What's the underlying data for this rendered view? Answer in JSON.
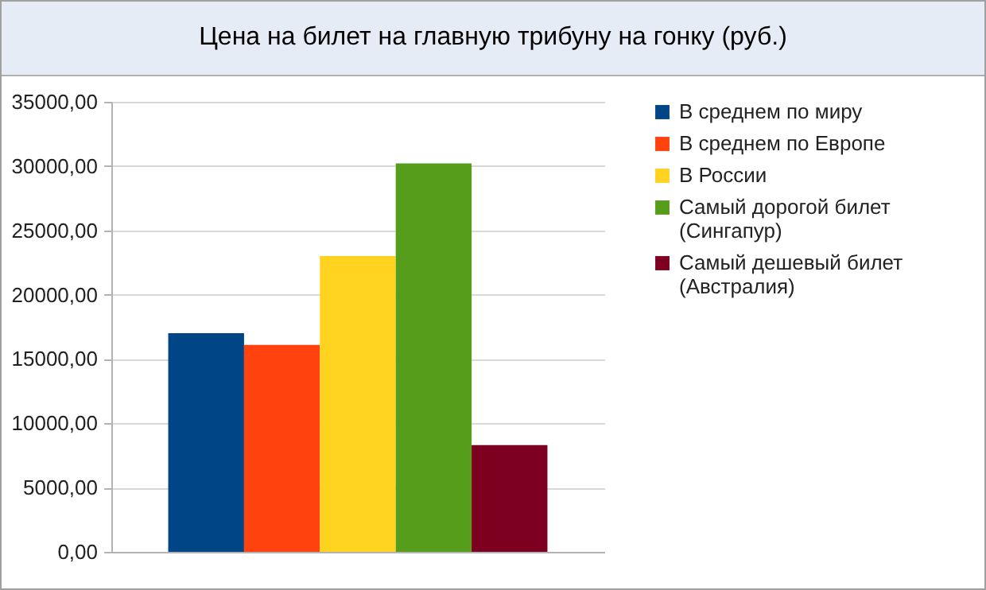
{
  "chart_data": {
    "type": "bar",
    "title": "Цена на билет на главную трибуну на гонку (руб.)",
    "categories": [
      null
    ],
    "series": [
      {
        "name": "В среднем по миру",
        "color": "#004586",
        "values": [
          17000
        ]
      },
      {
        "name": "В среднем по Европе",
        "color": "#ff420e",
        "values": [
          16100
        ]
      },
      {
        "name": "В России",
        "color": "#ffd320",
        "values": [
          23000
        ]
      },
      {
        "name": "Самый дорогой билет (Сингапур)",
        "color": "#579d1c",
        "values": [
          30200
        ]
      },
      {
        "name": "Самый дешевый билет (Австралия)",
        "color": "#7e0021",
        "values": [
          8300
        ]
      }
    ],
    "ylim": [
      0,
      35000
    ],
    "yticks": [
      {
        "value": 0,
        "label": "0,00"
      },
      {
        "value": 5000,
        "label": "5000,00"
      },
      {
        "value": 10000,
        "label": "10000,00"
      },
      {
        "value": 15000,
        "label": "15000,00"
      },
      {
        "value": 20000,
        "label": "20000,00"
      },
      {
        "value": 25000,
        "label": "25000,00"
      },
      {
        "value": 30000,
        "label": "30000,00"
      },
      {
        "value": 35000,
        "label": "35000,00"
      }
    ],
    "grid": "y",
    "legend": "right"
  }
}
